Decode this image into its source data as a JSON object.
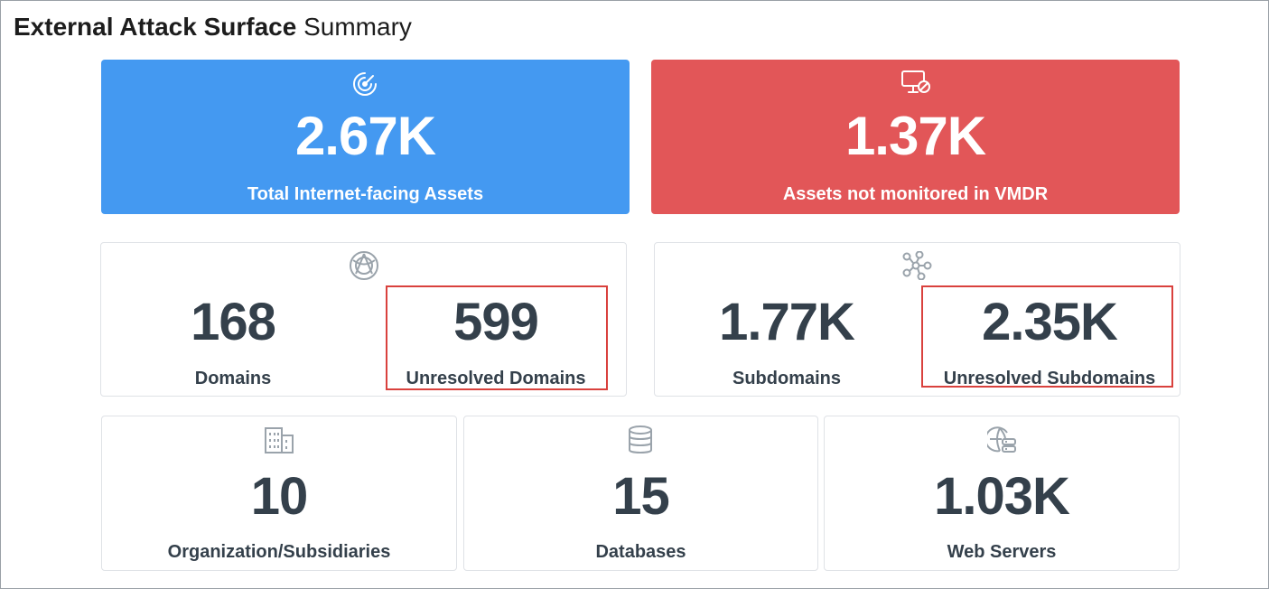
{
  "header": {
    "title_bold": "External Attack Surface",
    "title_light": "Summary"
  },
  "total_assets": {
    "value": "2.67K",
    "label": "Total Internet-facing Assets",
    "icon": "radar-icon",
    "color": "#4499f1"
  },
  "not_monitored": {
    "value": "1.37K",
    "label": "Assets not monitored in VMDR",
    "icon": "monitor-blocked-icon",
    "color": "#e25658"
  },
  "domains": {
    "icon": "globe-network-icon",
    "count": {
      "value": "168",
      "label": "Domains"
    },
    "unresolved": {
      "value": "599",
      "label": "Unresolved Domains"
    }
  },
  "subdomains": {
    "icon": "network-nodes-icon",
    "count": {
      "value": "1.77K",
      "label": "Subdomains"
    },
    "unresolved": {
      "value": "2.35K",
      "label": "Unresolved Subdomains"
    }
  },
  "organizations": {
    "value": "10",
    "label": "Organization/Subsidiaries",
    "icon": "buildings-icon"
  },
  "databases": {
    "value": "15",
    "label": "Databases",
    "icon": "database-icon"
  },
  "web_servers": {
    "value": "1.03K",
    "label": "Web Servers",
    "icon": "web-server-icon"
  },
  "highlight_color": "#d9413d"
}
